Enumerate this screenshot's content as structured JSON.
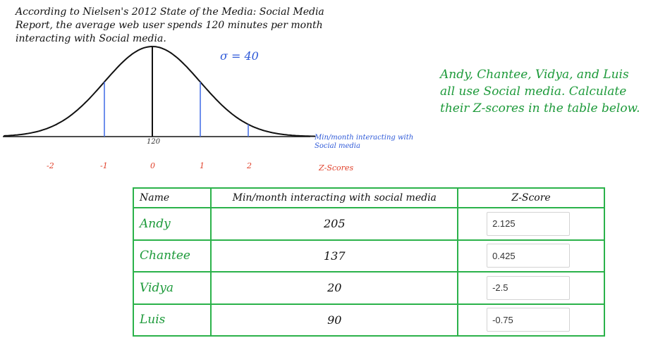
{
  "intro": "According to Nielsen's 2012 State of the Media: Social Media Report, the average web user spends 120 minutes per month interacting with Social media.",
  "sigma_label": "σ = 40",
  "instructions": "Andy, Chantee, Vidya, and Luis all use Social media. Calculate their Z-scores in the table below.",
  "chart_data": {
    "type": "line",
    "mean": 120,
    "sd": 40,
    "x_tick_labels": [
      "120"
    ],
    "z_scores": [
      "-2",
      "-1",
      "0",
      "1",
      "2"
    ],
    "xlabel": "Min/month interacting with Social media",
    "zlabel": "Z-Scores",
    "colors": {
      "curve": "#111111",
      "mean_line": "#111111",
      "sd_lines": "#4a73e8",
      "z_labels": "#e0402a"
    }
  },
  "table": {
    "headers": {
      "name": "Name",
      "minutes": "Min/month interacting with social media",
      "z": "Z-Score"
    },
    "rows": [
      {
        "name": "Andy",
        "minutes": "205",
        "z": "2.125"
      },
      {
        "name": "Chantee",
        "minutes": "137",
        "z": "0.425"
      },
      {
        "name": "Vidya",
        "minutes": "20",
        "z": "-2.5"
      },
      {
        "name": "Luis",
        "minutes": "90",
        "z": "-0.75"
      }
    ]
  }
}
